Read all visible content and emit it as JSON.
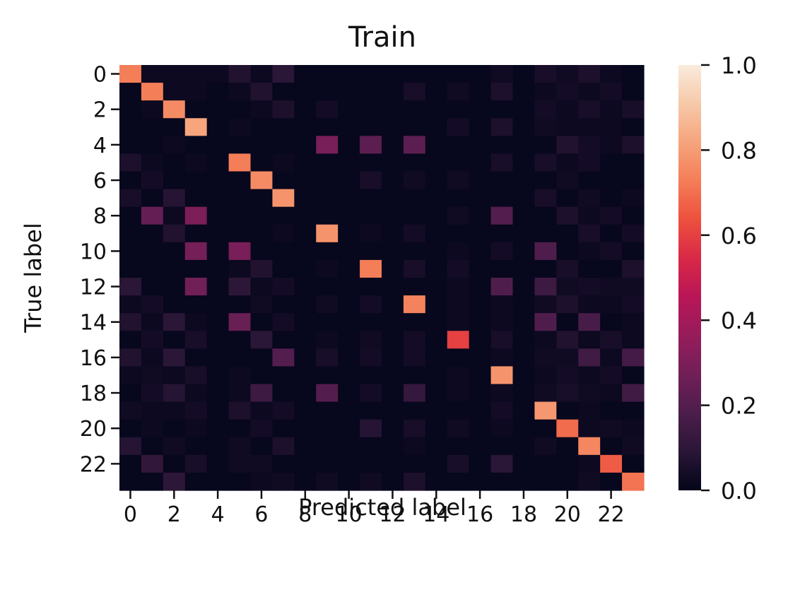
{
  "chart_data": {
    "type": "heatmap",
    "title": "Train",
    "xlabel": "Predicted label",
    "ylabel": "True label",
    "x_ticks": [
      "0",
      "2",
      "4",
      "6",
      "8",
      "10",
      "12",
      "14",
      "16",
      "18",
      "20",
      "22"
    ],
    "y_ticks": [
      "0",
      "2",
      "4",
      "6",
      "8",
      "10",
      "12",
      "14",
      "16",
      "18",
      "20",
      "22"
    ],
    "n_classes": 24,
    "colorbar": {
      "min": 0.0,
      "max": 1.0,
      "ticks": [
        "0.0",
        "0.2",
        "0.4",
        "0.6",
        "0.8",
        "1.0"
      ],
      "colormap": "rocket",
      "stops": [
        "#03051a",
        "#2a1636",
        "#4c1d4b",
        "#711f57",
        "#961c5b",
        "#b91657",
        "#d92847",
        "#ed503e",
        "#f47d57",
        "#f6a47c",
        "#f6c9a8",
        "#faebdd"
      ]
    },
    "matrix": [
      [
        0.73,
        0.02,
        0.02,
        0.02,
        0.02,
        0.07,
        0.02,
        0.09,
        0.01,
        0.01,
        0.01,
        0.01,
        0.01,
        0.01,
        0.01,
        0.01,
        0.01,
        0.03,
        0.01,
        0.05,
        0.03,
        0.06,
        0.02,
        0.01
      ],
      [
        0.01,
        0.73,
        0.02,
        0.02,
        0.01,
        0.02,
        0.07,
        0.01,
        0.01,
        0.01,
        0.01,
        0.01,
        0.01,
        0.05,
        0.01,
        0.03,
        0.01,
        0.06,
        0.01,
        0.02,
        0.04,
        0.02,
        0.04,
        0.01
      ],
      [
        0.01,
        0.02,
        0.76,
        0.01,
        0.01,
        0.01,
        0.02,
        0.06,
        0.01,
        0.04,
        0.01,
        0.01,
        0.01,
        0.01,
        0.01,
        0.01,
        0.01,
        0.01,
        0.01,
        0.04,
        0.02,
        0.05,
        0.02,
        0.05
      ],
      [
        0.01,
        0.01,
        0.01,
        0.82,
        0.01,
        0.02,
        0.01,
        0.01,
        0.01,
        0.01,
        0.01,
        0.01,
        0.01,
        0.01,
        0.01,
        0.04,
        0.01,
        0.06,
        0.01,
        0.03,
        0.02,
        0.02,
        0.02,
        0.01
      ],
      [
        0.01,
        0.01,
        0.02,
        0.01,
        0.01,
        0.01,
        0.01,
        0.01,
        0.01,
        0.29,
        0.01,
        0.22,
        0.01,
        0.22,
        0.01,
        0.01,
        0.01,
        0.01,
        0.01,
        0.01,
        0.07,
        0.04,
        0.02,
        0.06
      ],
      [
        0.06,
        0.02,
        0.01,
        0.02,
        0.01,
        0.73,
        0.01,
        0.02,
        0.01,
        0.01,
        0.01,
        0.01,
        0.01,
        0.01,
        0.01,
        0.01,
        0.01,
        0.05,
        0.01,
        0.05,
        0.02,
        0.04,
        0.01,
        0.01
      ],
      [
        0.01,
        0.04,
        0.01,
        0.01,
        0.01,
        0.01,
        0.76,
        0.01,
        0.01,
        0.01,
        0.01,
        0.05,
        0.01,
        0.03,
        0.01,
        0.03,
        0.01,
        0.01,
        0.01,
        0.01,
        0.03,
        0.01,
        0.01,
        0.01
      ],
      [
        0.05,
        0.01,
        0.08,
        0.01,
        0.01,
        0.01,
        0.01,
        0.78,
        0.01,
        0.01,
        0.01,
        0.01,
        0.01,
        0.01,
        0.01,
        0.01,
        0.01,
        0.01,
        0.01,
        0.05,
        0.01,
        0.03,
        0.01,
        0.02
      ],
      [
        0.01,
        0.24,
        0.02,
        0.3,
        0.01,
        0.01,
        0.01,
        0.01,
        0.01,
        0.01,
        0.01,
        0.01,
        0.01,
        0.01,
        0.01,
        0.03,
        0.01,
        0.2,
        0.01,
        0.01,
        0.06,
        0.02,
        0.04,
        0.01
      ],
      [
        0.01,
        0.01,
        0.07,
        0.01,
        0.01,
        0.01,
        0.01,
        0.02,
        0.01,
        0.78,
        0.01,
        0.02,
        0.01,
        0.04,
        0.01,
        0.01,
        0.01,
        0.01,
        0.01,
        0.01,
        0.01,
        0.05,
        0.01,
        0.04
      ],
      [
        0.01,
        0.01,
        0.01,
        0.28,
        0.01,
        0.29,
        0.01,
        0.01,
        0.01,
        0.01,
        0.01,
        0.01,
        0.01,
        0.01,
        0.01,
        0.02,
        0.01,
        0.04,
        0.01,
        0.19,
        0.01,
        0.02,
        0.04,
        0.01
      ],
      [
        0.01,
        0.01,
        0.01,
        0.01,
        0.01,
        0.02,
        0.07,
        0.01,
        0.01,
        0.02,
        0.01,
        0.73,
        0.01,
        0.05,
        0.01,
        0.04,
        0.01,
        0.01,
        0.01,
        0.01,
        0.05,
        0.01,
        0.01,
        0.06
      ],
      [
        0.09,
        0.01,
        0.01,
        0.27,
        0.01,
        0.1,
        0.02,
        0.04,
        0.01,
        0.01,
        0.01,
        0.01,
        0.01,
        0.01,
        0.01,
        0.02,
        0.01,
        0.19,
        0.01,
        0.14,
        0.03,
        0.04,
        0.03,
        0.03
      ],
      [
        0.02,
        0.04,
        0.01,
        0.01,
        0.01,
        0.01,
        0.03,
        0.01,
        0.01,
        0.03,
        0.01,
        0.04,
        0.01,
        0.74,
        0.01,
        0.02,
        0.01,
        0.02,
        0.01,
        0.03,
        0.06,
        0.02,
        0.02,
        0.04
      ],
      [
        0.07,
        0.02,
        0.09,
        0.02,
        0.01,
        0.25,
        0.01,
        0.04,
        0.01,
        0.01,
        0.01,
        0.01,
        0.01,
        0.01,
        0.01,
        0.02,
        0.01,
        0.02,
        0.01,
        0.19,
        0.01,
        0.17,
        0.01,
        0.02
      ],
      [
        0.01,
        0.04,
        0.01,
        0.05,
        0.01,
        0.01,
        0.09,
        0.01,
        0.01,
        0.02,
        0.01,
        0.03,
        0.01,
        0.04,
        0.01,
        0.6,
        0.01,
        0.05,
        0.01,
        0.02,
        0.07,
        0.02,
        0.05,
        0.02
      ],
      [
        0.07,
        0.02,
        0.09,
        0.01,
        0.01,
        0.01,
        0.01,
        0.2,
        0.01,
        0.05,
        0.01,
        0.04,
        0.01,
        0.04,
        0.01,
        0.01,
        0.01,
        0.02,
        0.01,
        0.03,
        0.03,
        0.15,
        0.02,
        0.16
      ],
      [
        0.02,
        0.03,
        0.02,
        0.05,
        0.01,
        0.02,
        0.01,
        0.01,
        0.01,
        0.01,
        0.01,
        0.01,
        0.01,
        0.01,
        0.01,
        0.02,
        0.01,
        0.78,
        0.01,
        0.02,
        0.04,
        0.02,
        0.04,
        0.01
      ],
      [
        0.01,
        0.04,
        0.08,
        0.02,
        0.01,
        0.02,
        0.14,
        0.01,
        0.01,
        0.2,
        0.01,
        0.04,
        0.01,
        0.12,
        0.01,
        0.02,
        0.01,
        0.02,
        0.01,
        0.03,
        0.05,
        0.03,
        0.02,
        0.15
      ],
      [
        0.03,
        0.02,
        0.02,
        0.04,
        0.01,
        0.06,
        0.02,
        0.04,
        0.01,
        0.01,
        0.01,
        0.01,
        0.01,
        0.01,
        0.01,
        0.01,
        0.01,
        0.04,
        0.01,
        0.79,
        0.01,
        0.02,
        0.01,
        0.01
      ],
      [
        0.01,
        0.02,
        0.01,
        0.02,
        0.01,
        0.01,
        0.04,
        0.01,
        0.01,
        0.01,
        0.01,
        0.08,
        0.01,
        0.05,
        0.01,
        0.03,
        0.01,
        0.02,
        0.01,
        0.01,
        0.69,
        0.02,
        0.03,
        0.02
      ],
      [
        0.08,
        0.01,
        0.03,
        0.01,
        0.01,
        0.03,
        0.01,
        0.06,
        0.01,
        0.01,
        0.01,
        0.01,
        0.01,
        0.02,
        0.01,
        0.01,
        0.01,
        0.01,
        0.01,
        0.03,
        0.01,
        0.75,
        0.01,
        0.03
      ],
      [
        0.01,
        0.11,
        0.01,
        0.05,
        0.01,
        0.03,
        0.03,
        0.01,
        0.01,
        0.01,
        0.01,
        0.01,
        0.01,
        0.01,
        0.01,
        0.05,
        0.01,
        0.09,
        0.01,
        0.01,
        0.01,
        0.02,
        0.66,
        0.01
      ],
      [
        0.01,
        0.01,
        0.1,
        0.01,
        0.01,
        0.01,
        0.02,
        0.03,
        0.01,
        0.03,
        0.01,
        0.03,
        0.01,
        0.06,
        0.01,
        0.01,
        0.01,
        0.01,
        0.01,
        0.01,
        0.01,
        0.03,
        0.01,
        0.71
      ]
    ]
  }
}
